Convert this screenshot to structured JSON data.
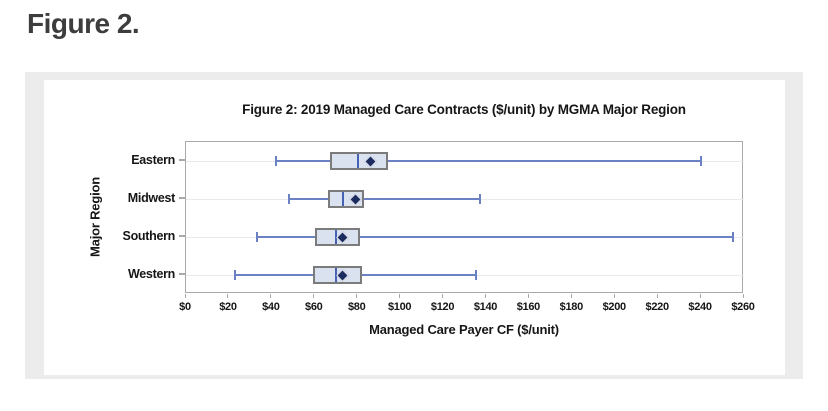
{
  "page": {
    "heading": "Figure 2."
  },
  "chart_data": {
    "type": "boxplot",
    "orientation": "horizontal",
    "title": "Figure 2: 2019 Managed Care Contracts ($/unit) by MGMA Major Region",
    "xlabel": "Managed Care Payer CF ($/unit)",
    "ylabel": "Major Region",
    "xlim": [
      0,
      260
    ],
    "xtick_step": 20,
    "xtick_values": [
      0,
      20,
      40,
      60,
      80,
      100,
      120,
      140,
      160,
      180,
      200,
      220,
      240,
      260
    ],
    "xtick_labels": [
      "$0",
      "$20",
      "$40",
      "$60",
      "$80",
      "$100",
      "$120",
      "$140",
      "$160",
      "$180",
      "$200",
      "$220",
      "$240",
      "$260"
    ],
    "grid": "horizontal-category-lines",
    "legend": "none",
    "categories": [
      "Eastern",
      "Midwest",
      "Southern",
      "Western"
    ],
    "series": [
      {
        "category": "Eastern",
        "min": 42,
        "q1": 67,
        "median": 80,
        "mean": 86,
        "q3": 94,
        "max": 240
      },
      {
        "category": "Midwest",
        "min": 48,
        "q1": 66,
        "median": 73,
        "mean": 79,
        "q3": 83,
        "max": 137
      },
      {
        "category": "Southern",
        "min": 33,
        "q1": 60,
        "median": 70,
        "mean": 73,
        "q3": 81,
        "max": 255
      },
      {
        "category": "Western",
        "min": 23,
        "q1": 59,
        "median": 70,
        "mean": 73,
        "q3": 82,
        "max": 135
      }
    ],
    "colors": {
      "whisker": "#6a81c4",
      "median": "#4660b4",
      "box_fill": "#dbe2ef",
      "box_border": "#7b7b7b",
      "mean_diamond": "#1d2c5f",
      "mean_diamond_outline": "#e8ecf4",
      "gridline": "#eaeaee",
      "frame": "#a9a9a9",
      "panel_background": "#ececec",
      "text": "#161616",
      "heading_text": "#3d3d3d"
    }
  }
}
